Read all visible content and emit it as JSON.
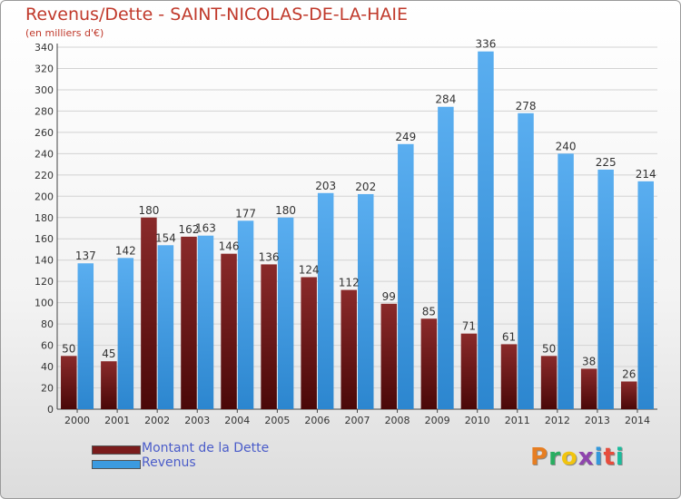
{
  "header": {
    "title": "Revenus/Dette - SAINT-NICOLAS-DE-LA-HAIE",
    "subtitle": "(en milliers d'€)"
  },
  "legend": {
    "items": [
      {
        "label": "Montant de la Dette",
        "color": "#7a1c1c"
      },
      {
        "label": "Revenus",
        "color": "#3c9be0"
      }
    ]
  },
  "logo": {
    "text": "Proxiti",
    "colors": [
      "#e67e22",
      "#27ae60",
      "#f1c40f",
      "#8e44ad",
      "#3498db",
      "#e74c3c",
      "#1abc9c"
    ]
  },
  "colors": {
    "title": "#c0392b",
    "debt": "#7a1c1c",
    "revenue": "#3c9be0",
    "axis": "#444444"
  },
  "chart_data": {
    "type": "bar",
    "title": "Revenus/Dette - SAINT-NICOLAS-DE-LA-HAIE",
    "subtitle": "(en milliers d'€)",
    "categories": [
      "2000",
      "2001",
      "2002",
      "2003",
      "2004",
      "2005",
      "2006",
      "2007",
      "2008",
      "2009",
      "2010",
      "2011",
      "2012",
      "2013",
      "2014"
    ],
    "series": [
      {
        "name": "Montant de la Dette",
        "values": [
          50,
          45,
          180,
          162,
          146,
          136,
          124,
          112,
          99,
          85,
          71,
          61,
          50,
          38,
          26
        ]
      },
      {
        "name": "Revenus",
        "values": [
          137,
          142,
          154,
          163,
          177,
          180,
          203,
          202,
          249,
          284,
          336,
          278,
          240,
          225,
          214
        ]
      }
    ],
    "ylim": [
      0,
      340
    ],
    "yticks": [
      0,
      20,
      40,
      60,
      80,
      100,
      120,
      140,
      160,
      180,
      200,
      220,
      240,
      260,
      280,
      300,
      320,
      340
    ],
    "grid": true,
    "legend_position": "bottom-left"
  }
}
